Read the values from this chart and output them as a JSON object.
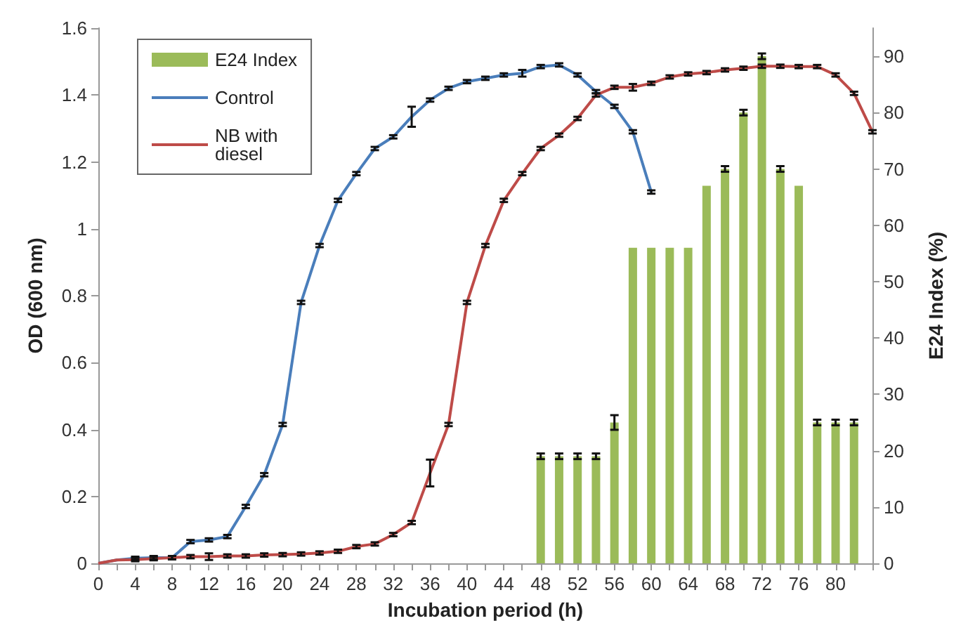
{
  "chart_data": {
    "type": "line",
    "xlabel": "Incubation period (h)",
    "ylabel": "OD (600 nm)",
    "y2label": "E24 Index (%)",
    "xlim": [
      0,
      84
    ],
    "xticks": [
      0,
      {
        "value": 2,
        "label": null
      },
      4,
      {
        "value": 6,
        "label": null
      },
      8,
      {
        "value": 10,
        "label": null
      },
      12,
      {
        "value": 14,
        "label": null
      },
      16,
      {
        "value": 18,
        "label": null
      },
      20,
      {
        "value": 22,
        "label": null
      },
      24,
      {
        "value": 26,
        "label": null
      },
      28,
      {
        "value": 30,
        "label": null
      },
      32,
      {
        "value": 34,
        "label": null
      },
      36,
      {
        "value": 38,
        "label": null
      },
      40,
      {
        "value": 42,
        "label": null
      },
      44,
      {
        "value": 46,
        "label": null
      },
      48,
      {
        "value": 50,
        "label": null
      },
      52,
      {
        "value": 54,
        "label": null
      },
      56,
      {
        "value": 58,
        "label": null
      },
      60,
      {
        "value": 62,
        "label": null
      },
      64,
      {
        "value": 66,
        "label": null
      },
      68,
      {
        "value": 70,
        "label": null
      },
      72,
      {
        "value": 74,
        "label": null
      },
      76,
      {
        "value": 78,
        "label": null
      },
      80,
      {
        "value": 82,
        "label": null
      },
      {
        "value": 84,
        "label": null
      }
    ],
    "ylim": [
      0,
      1.6
    ],
    "yticks": [
      0,
      0.2,
      0.4,
      0.6,
      0.8,
      1,
      1.2,
      1.4,
      1.6
    ],
    "y2lim": [
      0,
      95
    ],
    "y2ticks": [
      0,
      10,
      20,
      30,
      40,
      50,
      60,
      70,
      80,
      90
    ],
    "legend": "top left",
    "grid": false,
    "marker": "none",
    "line_style": "solid",
    "series": [
      {
        "name": "E24 Index",
        "type": "bar",
        "axis": "y2",
        "color": "#9bbb59",
        "x": [
          48,
          50,
          52,
          54,
          56,
          58,
          60,
          62,
          64,
          66,
          68,
          70,
          72,
          74,
          76,
          78,
          80,
          82
        ],
        "values": [
          19,
          19,
          19,
          19,
          25,
          56,
          56,
          56,
          56,
          67,
          70,
          80,
          90,
          70,
          67,
          25,
          25,
          25
        ],
        "errors": [
          0.5,
          0.5,
          0.5,
          0.5,
          1.3,
          null,
          null,
          null,
          null,
          null,
          0.5,
          0.5,
          0.5,
          0.5,
          null,
          0.5,
          0.5,
          0.5
        ]
      },
      {
        "name": "Control",
        "color": "#4a7ebb",
        "x": [
          0,
          2,
          4,
          6,
          8,
          10,
          12,
          14,
          16,
          18,
          20,
          22,
          24,
          26,
          28,
          30,
          32,
          34,
          36,
          38,
          40,
          42,
          44,
          46,
          48,
          50,
          52,
          54,
          56,
          58,
          60
        ],
        "values": [
          0,
          0.01,
          0.015,
          0.017,
          0.017,
          0.065,
          0.07,
          0.08,
          0.17,
          0.265,
          0.415,
          0.78,
          0.95,
          1.085,
          1.165,
          1.24,
          1.275,
          1.335,
          1.385,
          1.42,
          1.44,
          1.45,
          1.46,
          1.465,
          1.485,
          1.49,
          1.46,
          1.41,
          1.366,
          1.29,
          1.11
        ],
        "errors": [
          null,
          null,
          0.005,
          0.005,
          0.005,
          0.005,
          0.005,
          0.005,
          0.005,
          0.005,
          0.005,
          0.005,
          0.005,
          0.005,
          0.005,
          0.005,
          0.005,
          0.03,
          0.005,
          0.005,
          0.005,
          0.005,
          0.005,
          0.01,
          0.005,
          0.005,
          0.005,
          0.005,
          0.005,
          0.005,
          0.005
        ]
      },
      {
        "name": "NB with diesel",
        "color": "#be4b48",
        "x": [
          0,
          2,
          4,
          6,
          8,
          10,
          12,
          14,
          16,
          18,
          20,
          22,
          24,
          26,
          28,
          30,
          32,
          34,
          36,
          38,
          40,
          42,
          44,
          46,
          48,
          50,
          52,
          54,
          56,
          58,
          60,
          62,
          64,
          66,
          68,
          70,
          72,
          74,
          76,
          78,
          80,
          82,
          84
        ],
        "values": [
          0,
          0.01,
          0.011,
          0.014,
          0.017,
          0.02,
          0.02,
          0.022,
          0.022,
          0.025,
          0.026,
          0.028,
          0.031,
          0.036,
          0.05,
          0.058,
          0.086,
          0.122,
          0.27,
          0.415,
          0.78,
          0.95,
          1.085,
          1.165,
          1.24,
          1.28,
          1.33,
          1.4,
          1.423,
          1.423,
          1.435,
          1.454,
          1.463,
          1.467,
          1.475,
          1.48,
          1.486,
          1.486,
          1.485,
          1.485,
          1.46,
          1.405,
          1.29
        ],
        "errors": [
          null,
          null,
          0.005,
          0.005,
          0.005,
          0.005,
          0.01,
          0.005,
          0.005,
          0.005,
          0.005,
          0.005,
          0.005,
          0.005,
          0.005,
          0.005,
          0.005,
          0.005,
          0.04,
          0.005,
          0.005,
          0.005,
          0.005,
          0.005,
          0.005,
          0.005,
          0.005,
          0.005,
          0.005,
          0.01,
          0.005,
          0.005,
          0.005,
          0.005,
          0.005,
          0.005,
          0.005,
          0.005,
          0.005,
          0.005,
          0.005,
          0.005,
          0.005
        ]
      }
    ]
  }
}
